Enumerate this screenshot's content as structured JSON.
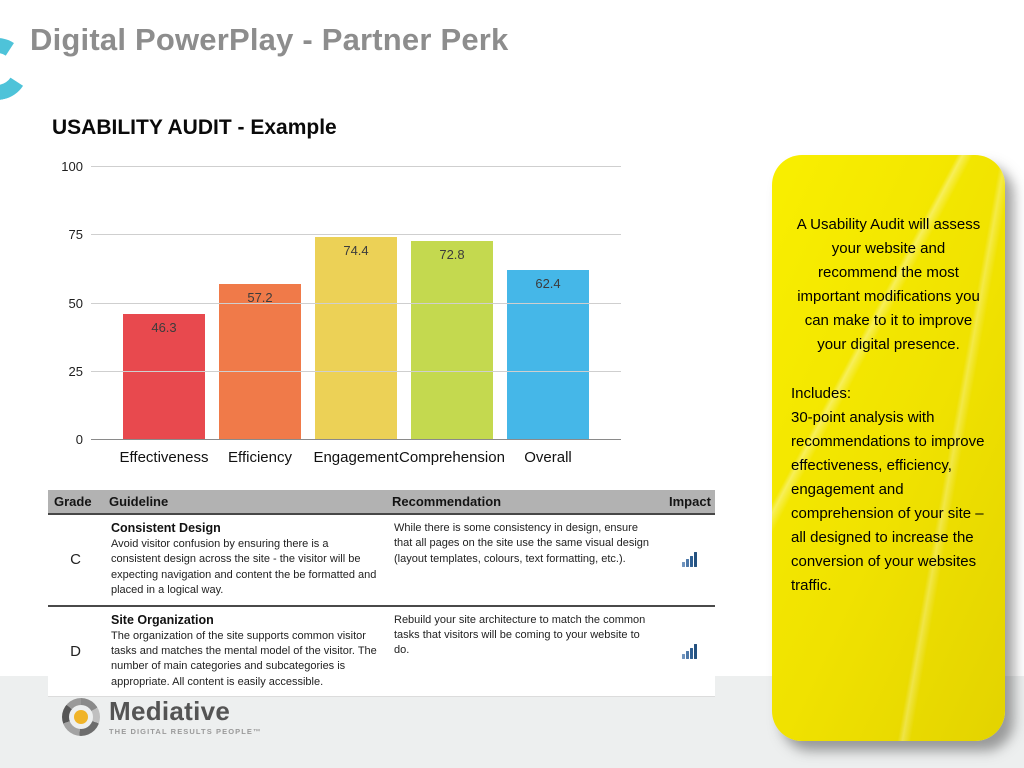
{
  "slide": {
    "title": "Digital PowerPlay - Partner Perk",
    "subtitle": "USABILITY AUDIT - Example"
  },
  "chart_data": {
    "type": "bar",
    "categories": [
      "Effectiveness",
      "Efficiency",
      "Engagement",
      "Comprehension",
      "Overall"
    ],
    "values": [
      46.3,
      57.2,
      74.4,
      72.8,
      62.4
    ],
    "colors": [
      "#e8494e",
      "#f07a49",
      "#ecd156",
      "#c4d94f",
      "#45b7e8"
    ],
    "title": "",
    "xlabel": "",
    "ylabel": "",
    "ylim": [
      0,
      100
    ],
    "yticks": [
      0,
      25,
      50,
      75,
      100
    ],
    "grid": true,
    "legend": "none"
  },
  "table": {
    "headers": [
      "Grade",
      "Guideline",
      "Recommendation",
      "Impact"
    ],
    "rows": [
      {
        "grade": "C",
        "guideline_title": "Consistent Design",
        "guideline_text": "Avoid visitor confusion by ensuring there is a consistent design across the site - the visitor will be expecting navigation and content the be formatted and placed in a logical way.",
        "recommendation": "While there is some consistency in design, ensure that all pages on the site use the same visual design (layout templates, colours, text formatting, etc.).",
        "impact_icon": "signal-bars-icon"
      },
      {
        "grade": "D",
        "guideline_title": "Site Organization",
        "guideline_text": "The organization of the site supports common visitor tasks and matches the mental model of the visitor. The number of main categories and subcategories is appropriate. All content is easily accessible.",
        "recommendation": "Rebuild your site architecture to match the common tasks that visitors will be coming to your website to do.",
        "impact_icon": "signal-bars-icon"
      }
    ]
  },
  "callout": {
    "intro": "A Usability Audit  will assess your website and recommend the most important modifications you can make to it to improve your digital presence.",
    "includes_label": "Includes:",
    "details": "30-point analysis with recommendations to improve effectiveness, efficiency, engagement and comprehension of your site – all designed to increase the conversion of your websites traffic.",
    "background_color": "#f0e200"
  },
  "footer": {
    "logo_text": "Mediative",
    "tagline": "THE DIGITAL RESULTS PEOPLE™"
  },
  "colors": {
    "accent_teal": "#4ec3d9",
    "title_gray": "#8d8d8d",
    "table_header_bg": "#b2b2b2",
    "footer_band": "#edefef",
    "impact_blue": "#2e5f93"
  }
}
